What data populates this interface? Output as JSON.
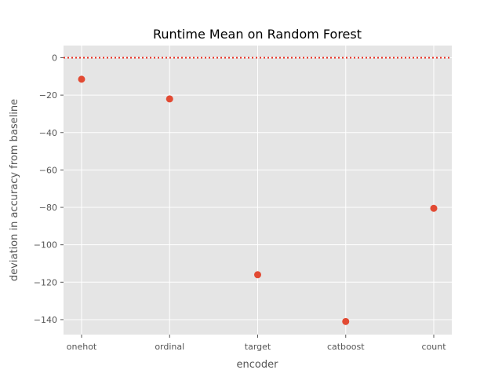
{
  "chart_data": {
    "type": "scatter",
    "title": "Runtime Mean on Random Forest",
    "xlabel": "encoder",
    "ylabel": "deviation in accuracy from baseline",
    "categories": [
      "onehot",
      "ordinal",
      "target",
      "catboost",
      "count"
    ],
    "values": [
      -11.5,
      -22,
      -116,
      -141,
      -80.5
    ],
    "ylim": [
      -148,
      6.5
    ],
    "yticks": [
      0,
      -20,
      -40,
      -60,
      -80,
      -100,
      -120,
      -140
    ],
    "ytick_labels": [
      "0",
      "−20",
      "−40",
      "−60",
      "−80",
      "−100",
      "−120",
      "−140"
    ],
    "reference_line": {
      "y": 0,
      "style": "dotted",
      "color": "#e8291c"
    },
    "grid": true,
    "colors": {
      "points": "#e24a33",
      "background": "#e5e5e5",
      "grid": "#ffffff"
    }
  }
}
